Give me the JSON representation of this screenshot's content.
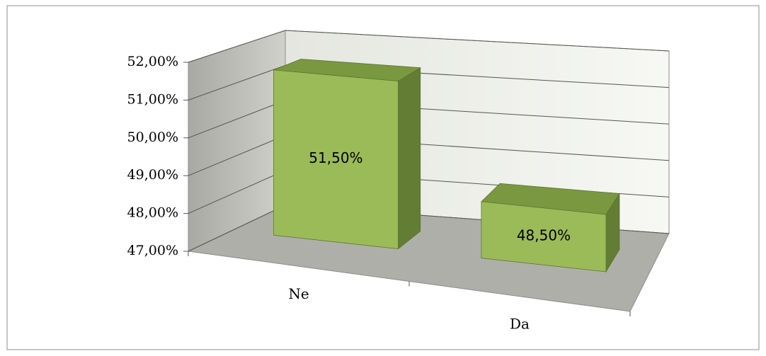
{
  "chart_data": {
    "type": "bar3d",
    "categories": [
      "Ne",
      "Da"
    ],
    "values": [
      51.5,
      48.5
    ],
    "value_labels": [
      "51,50%",
      "48,50%"
    ],
    "color": "#9bbb59",
    "ylim": [
      47,
      52
    ],
    "yticks": [
      {
        "value": 47,
        "label": "47,00%"
      },
      {
        "value": 48,
        "label": "48,00%"
      },
      {
        "value": 49,
        "label": "49,00%"
      },
      {
        "value": 50,
        "label": "50,00%"
      },
      {
        "value": 51,
        "label": "51,00%"
      },
      {
        "value": 52,
        "label": "52,00%"
      }
    ],
    "grid": true
  }
}
